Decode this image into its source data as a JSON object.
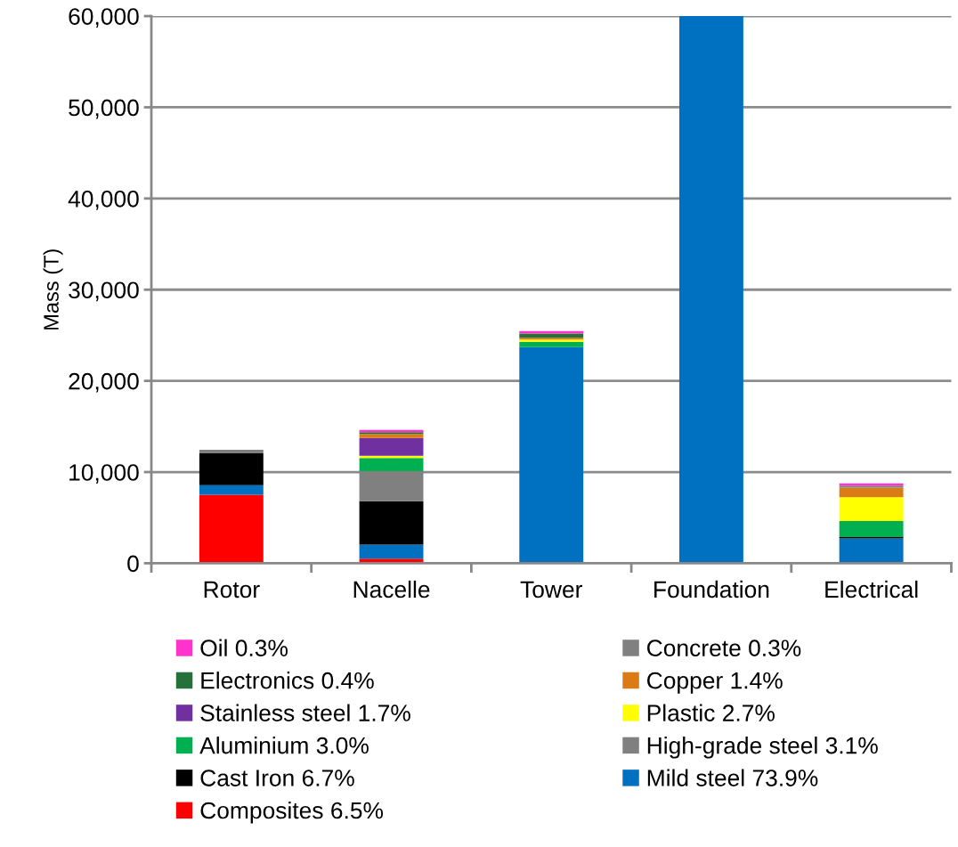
{
  "chart_data": {
    "type": "bar",
    "stacked": true,
    "ylabel": "Mass (T)",
    "categories": [
      "Rotor",
      "Nacelle",
      "Tower",
      "Foundation",
      "Electrical"
    ],
    "ylim": [
      0,
      60000
    ],
    "yticks": [
      {
        "value": 0,
        "label": "0"
      },
      {
        "value": 10000,
        "label": "10,000"
      },
      {
        "value": 20000,
        "label": "20,000"
      },
      {
        "value": 30000,
        "label": "30,000"
      },
      {
        "value": 40000,
        "label": "40,000"
      },
      {
        "value": 50000,
        "label": "50,000"
      },
      {
        "value": 60000,
        "label": "60,000"
      }
    ],
    "grid": "y",
    "legend": "bottom",
    "series": [
      {
        "name": "Composites 6.5%",
        "color": "#ff0000",
        "values": [
          7500,
          500,
          null,
          null,
          null
        ]
      },
      {
        "name": "Mild steel 73.9%",
        "color": "#0070c0",
        "values": [
          1050,
          1550,
          23700,
          60000,
          2720
        ]
      },
      {
        "name": "Cast Iron 6.7%",
        "color": "#000000",
        "values": [
          3500,
          4750,
          null,
          null,
          160
        ]
      },
      {
        "name": "High-grade steel 3.1%",
        "color": "#808080",
        "values": [
          400,
          3300,
          null,
          null,
          null
        ]
      },
      {
        "name": "Aluminium 3.0%",
        "color": "#00b050",
        "values": [
          null,
          1450,
          590,
          null,
          1740
        ]
      },
      {
        "name": "Plastic 2.7%",
        "color": "#ffff00",
        "values": [
          null,
          230,
          230,
          null,
          2620
        ]
      },
      {
        "name": "Stainless steel 1.7%",
        "color": "#7030a0",
        "values": [
          null,
          1950,
          null,
          null,
          null
        ]
      },
      {
        "name": "Copper 1.4%",
        "color": "#db7b16",
        "values": [
          null,
          450,
          200,
          null,
          1050
        ]
      },
      {
        "name": "Electronics 0.4%",
        "color": "#26703a",
        "values": [
          null,
          200,
          460,
          null,
          null
        ]
      },
      {
        "name": "Concrete 0.3%",
        "color": "#808080",
        "values": [
          null,
          null,
          null,
          null,
          230
        ]
      },
      {
        "name": "Oil 0.3%",
        "color": "#ff33cc",
        "values": [
          null,
          230,
          270,
          null,
          230
        ]
      }
    ]
  }
}
